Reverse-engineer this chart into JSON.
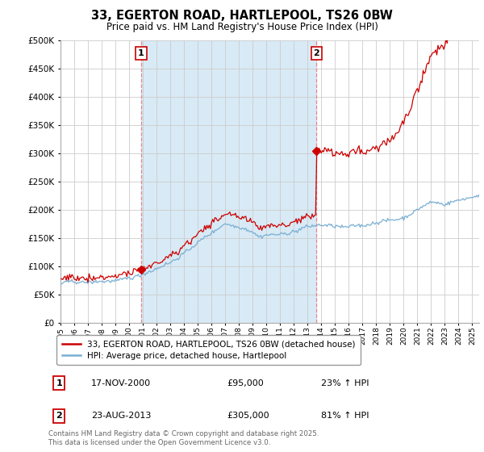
{
  "title": "33, EGERTON ROAD, HARTLEPOOL, TS26 0BW",
  "subtitle": "Price paid vs. HM Land Registry's House Price Index (HPI)",
  "ylim": [
    0,
    500000
  ],
  "xlim_start": 1995.0,
  "xlim_end": 2025.5,
  "line_color_property": "#cc0000",
  "line_color_hpi": "#7aafd4",
  "vline_color": "#e88888",
  "shade_color": "#d8eaf5",
  "sale1_x": 2000.88,
  "sale1_label": "1",
  "sale1_price": 95000,
  "sale1_date": "17-NOV-2000",
  "sale1_hpi": "23% ↑ HPI",
  "sale2_x": 2013.64,
  "sale2_label": "2",
  "sale2_price": 305000,
  "sale2_date": "23-AUG-2013",
  "sale2_hpi": "81% ↑ HPI",
  "legend_property": "33, EGERTON ROAD, HARTLEPOOL, TS26 0BW (detached house)",
  "legend_hpi": "HPI: Average price, detached house, Hartlepool",
  "footer": "Contains HM Land Registry data © Crown copyright and database right 2025.\nThis data is licensed under the Open Government Licence v3.0.",
  "bg_color": "#ffffff",
  "grid_color": "#cccccc"
}
